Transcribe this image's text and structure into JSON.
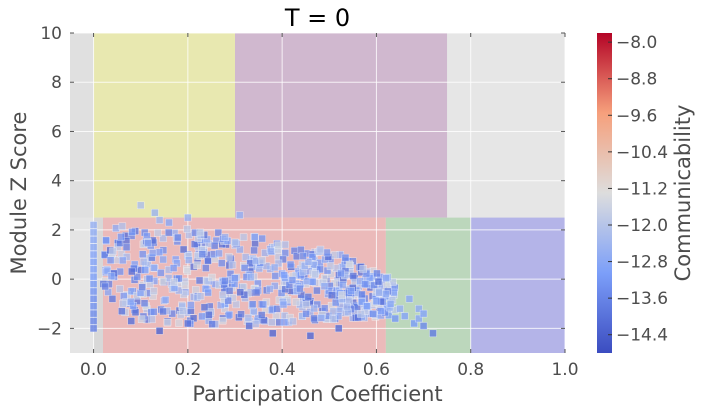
{
  "chart_data": {
    "type": "scatter",
    "title": "T = 0",
    "xlabel": "Participation Coefficient",
    "ylabel": "Module Z Score",
    "xlim": [
      -0.05,
      1.0
    ],
    "ylim": [
      -3.0,
      10.0
    ],
    "x_ticks": [
      0.0,
      0.2,
      0.4,
      0.6,
      0.8,
      1.0
    ],
    "x_tick_labels": [
      "0.0",
      "0.2",
      "0.4",
      "0.6",
      "0.8",
      "1.0"
    ],
    "y_ticks": [
      -2,
      0,
      2,
      4,
      6,
      8,
      10
    ],
    "y_tick_labels": [
      "−2",
      "0",
      "2",
      "4",
      "6",
      "8",
      "10"
    ],
    "grid": true,
    "regions": [
      {
        "x0": 0.0,
        "x1": 0.3,
        "y0": 2.5,
        "y1": 10.0,
        "color": "#e8e8b0"
      },
      {
        "x0": 0.3,
        "x1": 0.75,
        "y0": 2.5,
        "y1": 10.0,
        "color": "#d0b8cf"
      },
      {
        "x0": -0.05,
        "x1": 0.0,
        "y0": 2.5,
        "y1": 10.0,
        "color": "#e0e0e0"
      },
      {
        "x0": 0.75,
        "x1": 1.0,
        "y0": 2.5,
        "y1": 10.0,
        "color": "#e6e6e6"
      },
      {
        "x0": 0.0,
        "x1": 0.02,
        "y0": -3.0,
        "y1": 2.5,
        "color": "#d8d8d8"
      },
      {
        "x0": 0.02,
        "x1": 0.62,
        "y0": -3.0,
        "y1": 2.5,
        "color": "#ebbaba"
      },
      {
        "x0": 0.62,
        "x1": 0.8,
        "y0": -3.0,
        "y1": 2.5,
        "color": "#bcd7bc"
      },
      {
        "x0": 0.8,
        "x1": 1.0,
        "y0": -3.0,
        "y1": 2.5,
        "color": "#b4b4e8"
      }
    ],
    "colorbar": {
      "label": "Communicability",
      "min": -14.8,
      "max": -7.8,
      "ticks": [
        -8.0,
        -8.8,
        -9.6,
        -10.4,
        -11.2,
        -12.0,
        -12.8,
        -13.6,
        -14.4
      ],
      "tick_labels": [
        "−8.0",
        "−8.8",
        "−9.6",
        "−10.4",
        "−11.2",
        "−12.0",
        "−12.8",
        "−13.6",
        "−14.4"
      ],
      "colormap": "coolwarm"
    },
    "series": [
      {
        "points": [
          {
            "x": 0.0,
            "y": 2.2,
            "c": -12.6
          },
          {
            "x": 0.0,
            "y": 1.9,
            "c": -12.7
          },
          {
            "x": 0.0,
            "y": 1.6,
            "c": -12.8
          },
          {
            "x": 0.0,
            "y": 1.3,
            "c": -12.8
          },
          {
            "x": 0.0,
            "y": 1.0,
            "c": -12.9
          },
          {
            "x": 0.0,
            "y": 0.7,
            "c": -13.0
          },
          {
            "x": 0.0,
            "y": 0.4,
            "c": -13.0
          },
          {
            "x": 0.0,
            "y": 0.1,
            "c": -13.1
          },
          {
            "x": 0.0,
            "y": -0.2,
            "c": -13.2
          },
          {
            "x": 0.0,
            "y": -0.5,
            "c": -13.3
          },
          {
            "x": 0.0,
            "y": -0.8,
            "c": -13.4
          },
          {
            "x": 0.0,
            "y": -1.1,
            "c": -13.4
          },
          {
            "x": 0.0,
            "y": -1.4,
            "c": -13.5
          },
          {
            "x": 0.0,
            "y": -1.7,
            "c": -13.6
          },
          {
            "x": 0.0,
            "y": -2.0,
            "c": -13.7
          },
          {
            "x": 0.1,
            "y": 3.0,
            "c": -12.2
          },
          {
            "x": 0.13,
            "y": 2.7,
            "c": -12.5
          },
          {
            "x": 0.16,
            "y": 2.3,
            "c": -12.8
          },
          {
            "x": 0.2,
            "y": 2.5,
            "c": -12.6
          },
          {
            "x": 0.31,
            "y": 2.6,
            "c": -12.6
          },
          {
            "x": 0.14,
            "y": 2.4,
            "c": -12.4
          },
          {
            "x": 0.04,
            "y": -0.8,
            "c": -13.8
          },
          {
            "x": 0.06,
            "y": -1.3,
            "c": -13.9
          },
          {
            "x": 0.08,
            "y": -1.7,
            "c": -14.0
          },
          {
            "x": 0.14,
            "y": -2.1,
            "c": -14.3
          },
          {
            "x": 0.38,
            "y": -2.2,
            "c": -14.2
          },
          {
            "x": 0.2,
            "y": -1.8,
            "c": -14.0
          },
          {
            "x": 0.46,
            "y": -2.3,
            "c": -14.2
          },
          {
            "x": 0.52,
            "y": -2.0,
            "c": -14.1
          },
          {
            "x": 0.33,
            "y": -1.9,
            "c": -14.0
          },
          {
            "x": 0.64,
            "y": -1.6,
            "c": -13.2
          },
          {
            "x": 0.66,
            "y": -1.5,
            "c": -12.9
          },
          {
            "x": 0.68,
            "y": -1.8,
            "c": -13.1
          },
          {
            "x": 0.69,
            "y": -1.2,
            "c": -12.7
          },
          {
            "x": 0.7,
            "y": -1.9,
            "c": -13.5
          },
          {
            "x": 0.72,
            "y": -2.2,
            "c": -13.8
          },
          {
            "x": 0.67,
            "y": -0.8,
            "c": -12.8
          },
          {
            "x": 0.65,
            "y": -1.2,
            "c": -12.6
          },
          {
            "x": 0.63,
            "y": -1.0,
            "c": -12.8
          },
          {
            "x": 0.62,
            "y": -0.6,
            "c": -12.7
          },
          {
            "x": 0.61,
            "y": -1.3,
            "c": -12.9
          },
          {
            "x": 0.69,
            "y": -1.6,
            "c": -12.8
          },
          {
            "x": 0.7,
            "y": -1.4,
            "c": -12.9
          },
          {
            "x": 0.6,
            "y": -0.9,
            "c": -13.0
          },
          {
            "x": 0.58,
            "y": -1.1,
            "c": -13.1
          }
        ],
        "cloud": {
          "count": 640,
          "x_range": [
            0.02,
            0.64
          ],
          "upper_y_at": [
            [
              0.02,
              2.2
            ],
            [
              0.1,
              2.2
            ],
            [
              0.3,
              1.9
            ],
            [
              0.5,
              1.2
            ],
            [
              0.64,
              0.0
            ]
          ],
          "lower_y_at": [
            [
              0.02,
              -0.2
            ],
            [
              0.06,
              -1.4
            ],
            [
              0.15,
              -1.9
            ],
            [
              0.4,
              -1.8
            ],
            [
              0.64,
              -1.5
            ]
          ],
          "c_range": [
            -14.2,
            -11.4
          ]
        }
      }
    ]
  }
}
